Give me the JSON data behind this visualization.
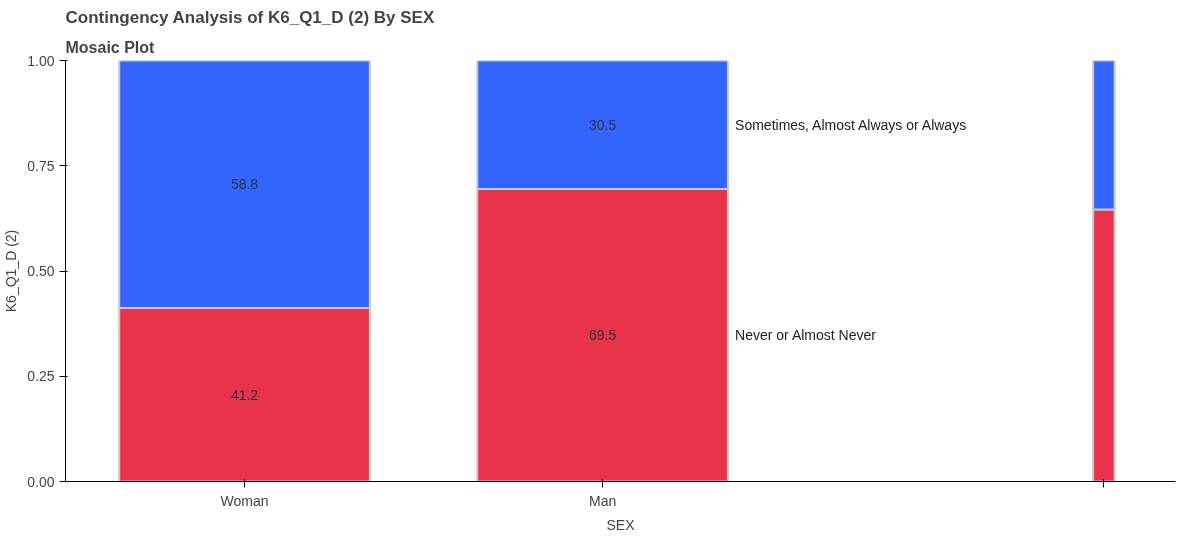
{
  "chart_data": {
    "type": "bar",
    "title": "Contingency Analysis of K6_Q1_D (2) By SEX",
    "subtitle": "Mosaic Plot",
    "xlabel": "SEX",
    "ylabel": "K6_Q1_D (2)",
    "categories": [
      "Woman",
      "Man",
      null
    ],
    "stacked": true,
    "series": [
      {
        "name": "Never or Almost Never",
        "color": "#e8334a",
        "values": [
          0.412,
          0.695,
          0.646
        ]
      },
      {
        "name": "Sometimes, Almost Always or Always",
        "color": "#3366ff",
        "values": [
          0.588,
          0.305,
          0.354
        ]
      }
    ],
    "annotations": [
      "41.2",
      "69.5",
      "58.8",
      "30.5"
    ],
    "ylim": [
      0,
      1
    ],
    "yticks": [
      {
        "value": 0,
        "label": "0.00"
      },
      {
        "value": 0.25,
        "label": "0.25"
      },
      {
        "value": 0.5,
        "label": "0.50"
      },
      {
        "value": 0.75,
        "label": "0.75"
      },
      {
        "value": 1,
        "label": "1.00"
      }
    ],
    "grid": false,
    "legend": false
  }
}
